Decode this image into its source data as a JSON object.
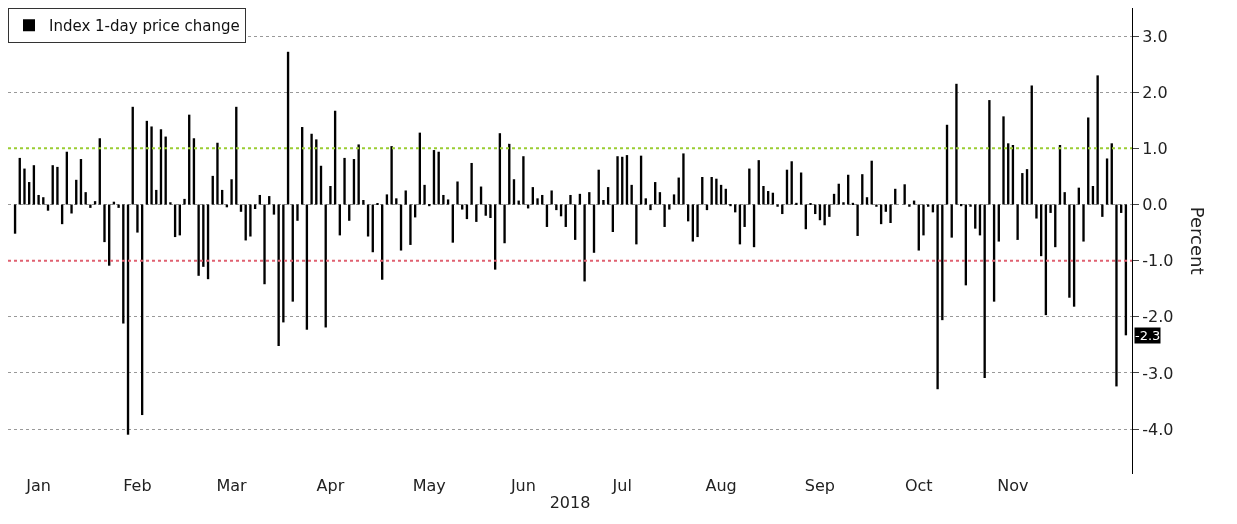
{
  "chart_data": {
    "type": "bar",
    "xlabel": "2018",
    "ylabel": "Percent",
    "categories": [
      null,
      null,
      null,
      null,
      null,
      "Jan",
      null,
      null,
      null,
      null,
      null,
      null,
      null,
      null,
      null,
      null,
      null,
      null,
      null,
      null,
      null,
      null,
      null,
      null,
      null,
      null,
      "Feb",
      null,
      null,
      null,
      null,
      null,
      null,
      null,
      null,
      null,
      null,
      null,
      null,
      null,
      null,
      null,
      null,
      null,
      null,
      null,
      "Mar",
      null,
      null,
      null,
      null,
      null,
      null,
      null,
      null,
      null,
      null,
      null,
      null,
      null,
      null,
      null,
      null,
      null,
      null,
      null,
      null,
      "Apr",
      null,
      null,
      null,
      null,
      null,
      null,
      null,
      null,
      null,
      null,
      null,
      null,
      null,
      null,
      null,
      null,
      null,
      null,
      null,
      null,
      "May",
      null,
      null,
      null,
      null,
      null,
      null,
      null,
      null,
      null,
      null,
      null,
      null,
      null,
      null,
      null,
      null,
      null,
      null,
      null,
      "Jun",
      null,
      null,
      null,
      null,
      null,
      null,
      null,
      null,
      null,
      null,
      null,
      null,
      null,
      null,
      null,
      null,
      null,
      null,
      null,
      null,
      "Jul",
      null,
      null,
      null,
      null,
      null,
      null,
      null,
      null,
      null,
      null,
      null,
      null,
      null,
      null,
      null,
      null,
      null,
      null,
      null,
      null,
      "Aug",
      null,
      null,
      null,
      null,
      null,
      null,
      null,
      null,
      null,
      null,
      null,
      null,
      null,
      null,
      null,
      null,
      null,
      null,
      null,
      null,
      "Sep",
      null,
      null,
      null,
      null,
      null,
      null,
      null,
      null,
      null,
      null,
      null,
      null,
      null,
      null,
      null,
      null,
      null,
      null,
      null,
      null,
      "Oct",
      null,
      null,
      null,
      null,
      null,
      null,
      null,
      null,
      null,
      null,
      null,
      null,
      null,
      null,
      null,
      null,
      null,
      null,
      null,
      "Nov",
      null,
      null,
      null,
      null,
      null,
      null,
      null,
      null,
      null,
      null,
      null,
      null,
      null,
      null,
      null,
      null,
      null,
      null,
      null,
      null,
      null,
      null,
      null,
      null
    ],
    "series": [
      {
        "name": "Index 1-day price change",
        "color": "#000000",
        "values": [
          -0.52,
          0.83,
          0.64,
          0.4,
          0.7,
          0.17,
          0.13,
          -0.11,
          0.7,
          0.67,
          -0.35,
          0.94,
          -0.16,
          0.44,
          0.81,
          0.22,
          -0.06,
          0.06,
          1.18,
          -0.67,
          -1.09,
          0.05,
          -0.06,
          -2.12,
          -4.1,
          1.74,
          -0.5,
          -3.75,
          1.49,
          1.39,
          0.26,
          1.34,
          1.21,
          0.04,
          -0.58,
          -0.55,
          0.1,
          1.6,
          1.18,
          -1.27,
          -1.11,
          -1.33,
          0.51,
          1.1,
          0.26,
          -0.05,
          0.45,
          1.74,
          -0.13,
          -0.64,
          -0.57,
          -0.08,
          0.17,
          -1.42,
          0.15,
          -0.18,
          -2.52,
          -2.1,
          2.72,
          -1.73,
          -0.29,
          1.38,
          -2.23,
          1.26,
          1.16,
          0.69,
          -2.19,
          0.33,
          1.67,
          -0.55,
          0.83,
          -0.29,
          0.81,
          1.07,
          0.08,
          -0.57,
          -0.85,
          0.01,
          -1.34,
          0.18,
          1.04,
          0.11,
          -0.82,
          0.25,
          -0.72,
          -0.23,
          1.28,
          0.35,
          -0.03,
          0.97,
          0.94,
          0.17,
          0.09,
          -0.68,
          0.41,
          -0.09,
          -0.26,
          0.74,
          -0.31,
          0.32,
          -0.2,
          -0.24,
          -1.16,
          1.27,
          -0.69,
          1.08,
          0.45,
          0.07,
          0.86,
          -0.07,
          0.31,
          0.11,
          0.17,
          -0.4,
          0.25,
          -0.1,
          -0.21,
          -0.4,
          0.17,
          -0.63,
          0.19,
          -1.37,
          0.22,
          -0.86,
          0.62,
          0.08,
          0.31,
          -0.49,
          0.86,
          0.85,
          0.88,
          0.35,
          -0.71,
          0.87,
          0.11,
          -0.1,
          0.4,
          0.22,
          -0.4,
          -0.09,
          0.18,
          0.48,
          0.91,
          -0.3,
          -0.66,
          -0.58,
          0.49,
          -0.1,
          0.49,
          0.46,
          0.35,
          0.28,
          -0.03,
          -0.14,
          -0.71,
          -0.4,
          0.64,
          -0.76,
          0.79,
          0.33,
          0.24,
          0.21,
          -0.04,
          -0.17,
          0.62,
          0.77,
          0.03,
          0.57,
          -0.44,
          0.01,
          -0.17,
          -0.28,
          -0.37,
          -0.22,
          0.19,
          0.37,
          0.04,
          0.53,
          0.03,
          -0.56,
          0.54,
          0.13,
          0.78,
          -0.04,
          -0.35,
          -0.13,
          -0.33,
          0.28,
          0.0,
          0.36,
          -0.04,
          0.07,
          -0.82,
          -0.55,
          -0.04,
          -0.14,
          -3.29,
          -2.06,
          1.42,
          -0.59,
          2.15,
          -0.03,
          -1.44,
          -0.04,
          -0.43,
          -0.55,
          -3.09,
          1.86,
          -1.73,
          -0.66,
          1.57,
          1.09,
          1.06,
          -0.63,
          0.56,
          0.63,
          2.12,
          -0.25,
          -0.92,
          -1.97,
          -0.15,
          -0.76,
          1.06,
          0.22,
          -1.66,
          -1.82,
          0.3,
          -0.66,
          1.55,
          0.33,
          2.3,
          -0.22,
          0.82,
          1.09,
          -3.24,
          -0.15,
          -2.33
        ]
      }
    ],
    "ylim": [
      -4.8,
      3.5
    ],
    "yticks": [
      {
        "value": -4,
        "label": "-4.0"
      },
      {
        "value": -3,
        "label": "-3.0"
      },
      {
        "value": -2,
        "label": "-2.0"
      },
      {
        "value": -1,
        "label": "-1.0"
      },
      {
        "value": 0,
        "label": "0.0"
      },
      {
        "value": 1,
        "label": "1.0"
      },
      {
        "value": 2,
        "label": "2.0"
      },
      {
        "value": 3,
        "label": "3.0"
      }
    ],
    "ref_lines": [
      {
        "axis": "y",
        "value": 1,
        "label": null,
        "color": "#9acd32",
        "line_style": "dotted"
      },
      {
        "axis": "y",
        "value": -1,
        "label": null,
        "color": "#e06070",
        "line_style": "dotted"
      }
    ],
    "annotations": [
      {
        "text": "-2.3",
        "y": -2.33
      }
    ],
    "grid": "y",
    "legend": "top left"
  }
}
